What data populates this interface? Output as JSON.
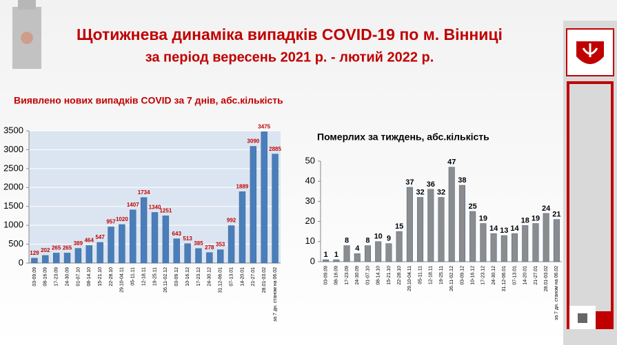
{
  "header": {
    "title": "Щотижнева динаміка випадків COVID-19 по м. Вінниці",
    "subtitle": "за період вересень 2021 р. - лютий 2022 р."
  },
  "chart_data": [
    {
      "type": "bar",
      "title": "Виявлено нових випадків COVID за 7 днів, абс.кількість",
      "categories": [
        "03-09.09",
        "08-16.09",
        "17-23.09",
        "24-30.09",
        "01-07.10",
        "08-14.10",
        "15-21.10",
        "22-28.10",
        "29.10-04.11",
        "05-11.11",
        "12-18.11",
        "19-25.11",
        "26.11-02.12",
        "03-09.12",
        "10-16.12",
        "17-23.12",
        "24-30.12",
        "31.12-06.01",
        "07-13.01",
        "14-20.01",
        "21-27.01",
        "28.01-03.02",
        "за 7 дн. станом на 06.02"
      ],
      "values": [
        129,
        202,
        265,
        265,
        389,
        464,
        547,
        957,
        1020,
        1407,
        1734,
        1340,
        1251,
        643,
        513,
        385,
        278,
        353,
        992,
        1889,
        3090,
        3475,
        2885
      ],
      "color": "#4a7ebb",
      "label_color": "#c00000",
      "ylim": [
        0,
        3500
      ],
      "yticks": [
        0,
        500,
        1000,
        1500,
        2000,
        2500,
        3000,
        3500
      ],
      "grid": true
    },
    {
      "type": "bar",
      "title": "Померлих за тиждень, абс.кількість",
      "categories": [
        "03-09.09",
        "08-16.09",
        "17-23.09",
        "24-30.09",
        "01-07.10",
        "08-14.10",
        "15-21.10",
        "22-28.10",
        "29.10-04.11",
        "05-11.11",
        "12-18.11",
        "19-25.11",
        "26.11-02.12",
        "03-09.12",
        "10-16.12",
        "17-23.12",
        "24-30.12",
        "31.12-06.01",
        "07-13.01",
        "14-20.01",
        "21-27.01",
        "28.01-03.02",
        "за 7 дн. станом на 06.02"
      ],
      "values": [
        1,
        1,
        8,
        4,
        8,
        10,
        9,
        15,
        37,
        32,
        36,
        32,
        47,
        38,
        25,
        19,
        14,
        13,
        14,
        18,
        19,
        24,
        21
      ],
      "color": "#8c8c8c",
      "label_color": "#000000",
      "ylim": [
        0,
        50
      ],
      "yticks": [
        0,
        10,
        20,
        30,
        40,
        50
      ],
      "grid": false
    }
  ]
}
